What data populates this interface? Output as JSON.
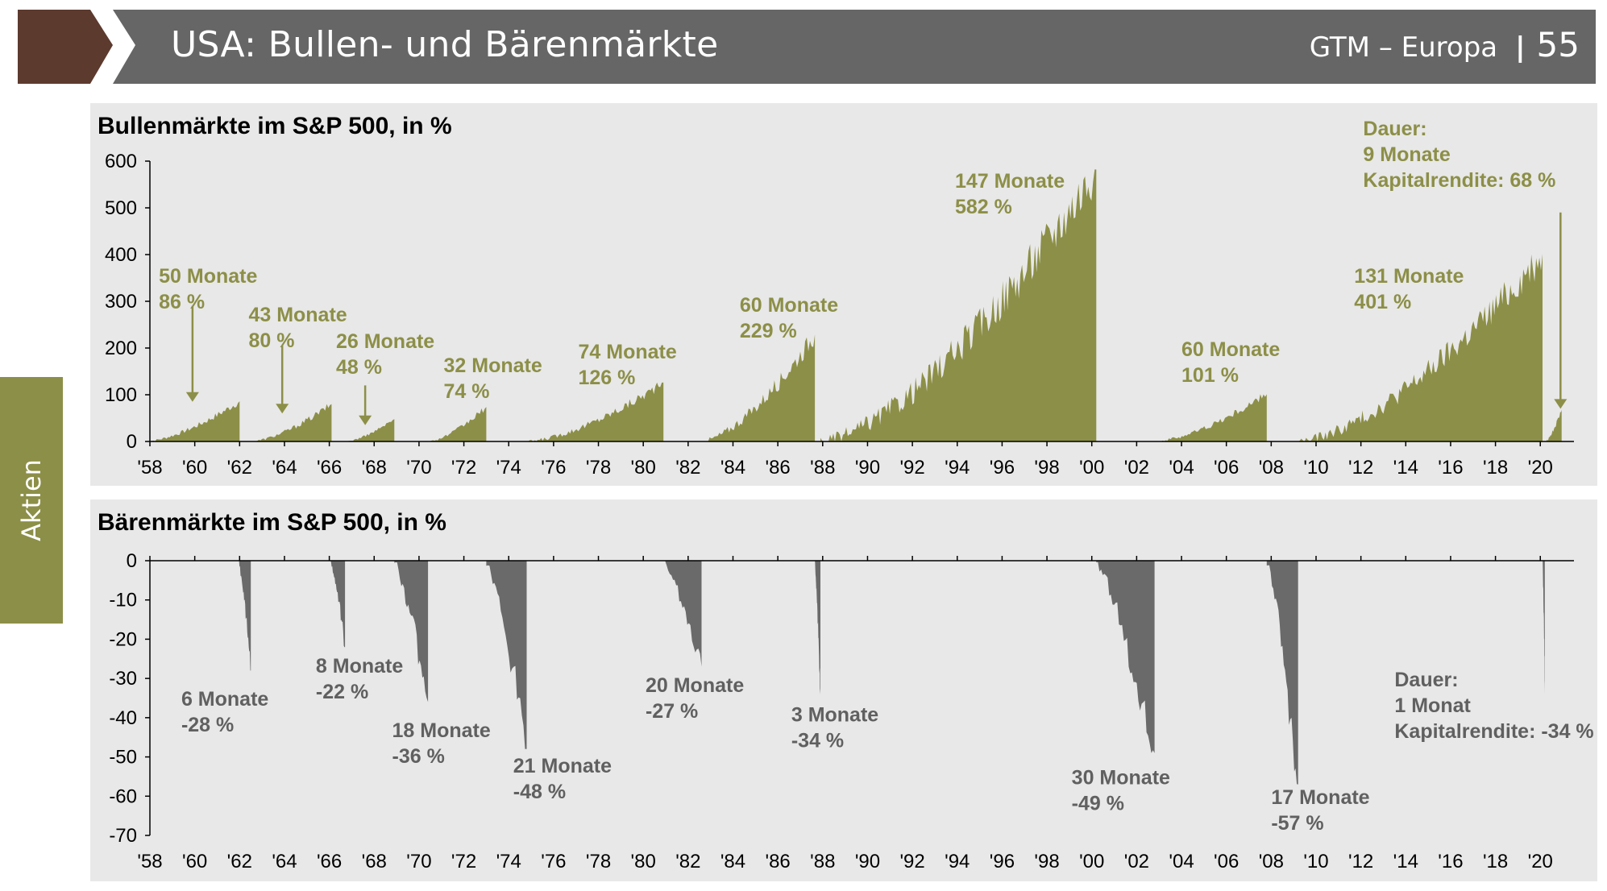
{
  "header": {
    "title": "USA: Bullen- und Bärenmärkte",
    "section": "GTM – Europa",
    "separator": "|",
    "page": "55"
  },
  "side_tab": {
    "label": "Aktien"
  },
  "colors": {
    "bull": "#8c8f47",
    "bear": "#6a6a6a",
    "header": "#666666",
    "accent": "#5c3a2e",
    "panel": "#e8e8e8"
  },
  "chart_data": [
    {
      "type": "area",
      "title": "Bullenmärkte im S&P 500, in %",
      "ylim": [
        0,
        600
      ],
      "yticks": [
        0,
        100,
        200,
        300,
        400,
        500,
        600
      ],
      "xlim": [
        1958,
        2021.5
      ],
      "xticks": [
        "'58",
        "'60",
        "'62",
        "'64",
        "'66",
        "'68",
        "'70",
        "'72",
        "'74",
        "'76",
        "'78",
        "'80",
        "'82",
        "'84",
        "'86",
        "'88",
        "'90",
        "'92",
        "'94",
        "'96",
        "'98",
        "'00",
        "'02",
        "'04",
        "'06",
        "'08",
        "'10",
        "'12",
        "'14",
        "'16",
        "'18",
        "'20"
      ],
      "series": [
        {
          "start": 1957.8,
          "end": 1962.0,
          "peak": 86
        },
        {
          "start": 1962.5,
          "end": 1966.1,
          "peak": 80
        },
        {
          "start": 1966.7,
          "end": 1968.9,
          "peak": 48
        },
        {
          "start": 1970.4,
          "end": 1973.0,
          "peak": 74
        },
        {
          "start": 1974.8,
          "end": 1980.9,
          "peak": 126
        },
        {
          "start": 1982.6,
          "end": 1987.65,
          "peak": 229
        },
        {
          "start": 1987.9,
          "end": 2000.2,
          "peak": 582
        },
        {
          "start": 2002.8,
          "end": 2007.8,
          "peak": 101
        },
        {
          "start": 2009.2,
          "end": 2020.1,
          "peak": 401
        },
        {
          "start": 2020.2,
          "end": 2020.95,
          "peak": 68
        }
      ],
      "annotations": [
        {
          "lines": [
            "50 Monate",
            "86 %"
          ],
          "x": 1958.4,
          "y": 340,
          "arrow": {
            "x": 1959.9,
            "from": 290,
            "to": 85
          }
        },
        {
          "lines": [
            "43 Monate",
            "80 %"
          ],
          "x": 1962.4,
          "y": 257,
          "arrow": {
            "x": 1963.9,
            "from": 205,
            "to": 60
          }
        },
        {
          "lines": [
            "26 Monate",
            "48 %"
          ],
          "x": 1966.3,
          "y": 200,
          "arrow": {
            "x": 1967.6,
            "from": 120,
            "to": 35
          }
        },
        {
          "lines": [
            "32 Monate",
            "74 %"
          ],
          "x": 1971.1,
          "y": 148
        },
        {
          "lines": [
            "74 Monate",
            "126 %"
          ],
          "x": 1977.1,
          "y": 178
        },
        {
          "lines": [
            "60 Monate",
            "229 %"
          ],
          "x": 1984.3,
          "y": 278
        },
        {
          "lines": [
            "147 Monate",
            "582 %"
          ],
          "x": 1993.9,
          "y": 543
        },
        {
          "lines": [
            "60 Monate",
            "101 %"
          ],
          "x": 2004.0,
          "y": 183
        },
        {
          "lines": [
            "131 Monate",
            "401 %"
          ],
          "x": 2011.7,
          "y": 340
        },
        {
          "lines": [
            "Dauer:",
            "9 Monate",
            "Kapitalrendite: 68 %"
          ],
          "x": 2012.1,
          "y": 655,
          "arrow": {
            "x": 2020.9,
            "from": 490,
            "to": 70
          }
        }
      ]
    },
    {
      "type": "area",
      "title": "Bärenmärkte im S&P 500, in %",
      "ylim": [
        -70,
        0
      ],
      "yticks": [
        0,
        -10,
        -20,
        -30,
        -40,
        -50,
        -60,
        -70
      ],
      "xlim": [
        1958,
        2021.5
      ],
      "xticks": [
        "'58",
        "'60",
        "'62",
        "'64",
        "'66",
        "'68",
        "'70",
        "'72",
        "'74",
        "'76",
        "'78",
        "'80",
        "'82",
        "'84",
        "'86",
        "'88",
        "'90",
        "'92",
        "'94",
        "'96",
        "'98",
        "'00",
        "'02",
        "'04",
        "'06",
        "'08",
        "'10",
        "'12",
        "'14",
        "'16",
        "'18",
        "'20"
      ],
      "series": [
        {
          "start": 1961.95,
          "end": 1962.5,
          "trough": -28
        },
        {
          "start": 1966.05,
          "end": 1966.7,
          "trough": -22
        },
        {
          "start": 1968.9,
          "end": 1970.4,
          "trough": -36
        },
        {
          "start": 1973.0,
          "end": 1974.8,
          "trough": -48
        },
        {
          "start": 1980.9,
          "end": 1982.6,
          "trough": -27
        },
        {
          "start": 1987.65,
          "end": 1987.9,
          "trough": -34
        },
        {
          "start": 2000.2,
          "end": 2002.8,
          "trough": -49
        },
        {
          "start": 2007.8,
          "end": 2009.2,
          "trough": -57
        },
        {
          "start": 2020.1,
          "end": 2020.2,
          "trough": -34
        }
      ],
      "annotations": [
        {
          "lines": [
            "6 Monate",
            "-28 %"
          ],
          "x": 1959.4,
          "y": -37
        },
        {
          "lines": [
            "8 Monate",
            "-22 %"
          ],
          "x": 1965.4,
          "y": -28.5
        },
        {
          "lines": [
            "18 Monate",
            "-36 %"
          ],
          "x": 1968.8,
          "y": -45
        },
        {
          "lines": [
            "21 Monate",
            "-48 %"
          ],
          "x": 1974.2,
          "y": -54
        },
        {
          "lines": [
            "20 Monate",
            "-27 %"
          ],
          "x": 1980.1,
          "y": -33.5
        },
        {
          "lines": [
            "3 Monate",
            "-34 %"
          ],
          "x": 1986.6,
          "y": -41
        },
        {
          "lines": [
            "30 Monate",
            "-49 %"
          ],
          "x": 1999.1,
          "y": -57
        },
        {
          "lines": [
            "17 Monate",
            "-57 %"
          ],
          "x": 2008.0,
          "y": -62
        },
        {
          "lines": [
            "Dauer:",
            "1 Monat",
            "Kapitalrendite: -34 %"
          ],
          "x": 2013.5,
          "y": -32
        }
      ]
    }
  ]
}
